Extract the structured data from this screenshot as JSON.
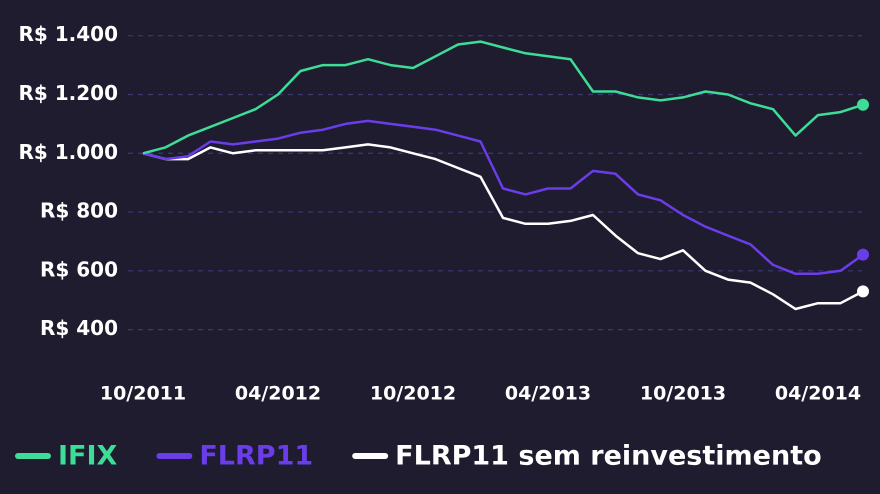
{
  "chart_data": {
    "type": "line",
    "categories": [
      "10/2011",
      null,
      null,
      null,
      null,
      null,
      "04/2012",
      null,
      null,
      null,
      null,
      null,
      "10/2012",
      null,
      null,
      null,
      null,
      null,
      "04/2013",
      null,
      null,
      null,
      null,
      null,
      "10/2013",
      null,
      null,
      null,
      null,
      null,
      "04/2014",
      null,
      null
    ],
    "series": [
      {
        "name": "IFIX",
        "color": "#3ddc97",
        "values": [
          1000,
          1020,
          1060,
          1090,
          1120,
          1150,
          1200,
          1280,
          1300,
          1300,
          1320,
          1300,
          1290,
          1330,
          1370,
          1380,
          1360,
          1340,
          1330,
          1320,
          1210,
          1210,
          1190,
          1180,
          1190,
          1210,
          1200,
          1170,
          1150,
          1060,
          1130,
          1140,
          1165
        ]
      },
      {
        "name": "FLRP11",
        "color": "#6a3de8",
        "values": [
          1000,
          980,
          990,
          1040,
          1030,
          1040,
          1050,
          1070,
          1080,
          1100,
          1110,
          1100,
          1090,
          1080,
          1060,
          1040,
          880,
          860,
          880,
          880,
          940,
          930,
          860,
          840,
          790,
          750,
          720,
          690,
          620,
          590,
          590,
          600,
          655
        ]
      },
      {
        "name": "FLRP11 sem reinvestimento",
        "color": "#ffffff",
        "values": [
          1000,
          980,
          980,
          1020,
          1000,
          1010,
          1010,
          1010,
          1010,
          1020,
          1030,
          1020,
          1000,
          980,
          950,
          920,
          780,
          760,
          760,
          770,
          790,
          720,
          660,
          640,
          670,
          600,
          570,
          560,
          520,
          470,
          490,
          490,
          530
        ]
      }
    ],
    "ylim": [
      300,
      1450
    ],
    "yticks": [
      {
        "value": 400,
        "label": "R$ 400"
      },
      {
        "value": 600,
        "label": "R$ 600"
      },
      {
        "value": 800,
        "label": "R$ 800"
      },
      {
        "value": 1000,
        "label": "R$ 1.000"
      },
      {
        "value": 1200,
        "label": "R$ 1.200"
      },
      {
        "value": 1400,
        "label": "R$ 1.400"
      }
    ],
    "grid": true,
    "legend": "bottom"
  }
}
